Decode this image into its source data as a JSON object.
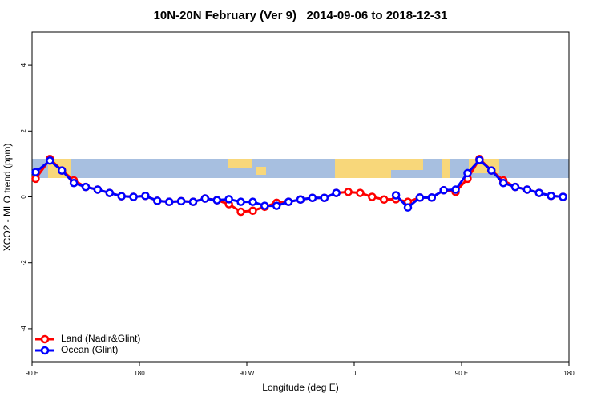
{
  "chart_data": {
    "type": "line",
    "title": "10N-20N February (Ver 9)   2014-09-06 to 2018-12-31",
    "xlabel": "Longitude (deg E)",
    "ylabel": "XCO2 - MLO trend (ppm)",
    "x": [
      93,
      105,
      115,
      125,
      135,
      145,
      155,
      165,
      175,
      185,
      195,
      205,
      215,
      225,
      235,
      245,
      255,
      265,
      275,
      285,
      295,
      305,
      315,
      325,
      335,
      345,
      355,
      365,
      375,
      385,
      395,
      405,
      415,
      425,
      435,
      445,
      455,
      465,
      475,
      485,
      495,
      505,
      515,
      525,
      535
    ],
    "series": [
      {
        "name": "Land (Nadir&Glint)",
        "color": "#ff0000",
        "values": [
          0.55,
          1.15,
          0.8,
          0.5,
          0.3,
          0.22,
          0.12,
          0.02,
          0,
          0.03,
          -0.12,
          -0.15,
          -0.13,
          -0.15,
          -0.05,
          -0.1,
          -0.22,
          -0.45,
          -0.42,
          -0.3,
          -0.18,
          -0.15,
          -0.08,
          -0.03,
          -0.03,
          0.12,
          0.15,
          0.12,
          0,
          -0.08,
          -0.07,
          -0.15,
          -0.02,
          -0.02,
          0.2,
          0.15,
          0.55,
          1.15,
          0.8,
          0.5,
          0.3,
          0.22,
          0.12,
          0.03,
          0
        ]
      },
      {
        "name": "Ocean (Glint)",
        "color": "#0000ff",
        "values": [
          0.75,
          1.1,
          0.8,
          0.42,
          0.3,
          0.22,
          0.12,
          0.02,
          0,
          0.03,
          -0.12,
          -0.15,
          -0.13,
          -0.15,
          -0.05,
          -0.1,
          -0.07,
          -0.15,
          -0.15,
          -0.27,
          -0.27,
          -0.15,
          -0.08,
          -0.03,
          -0.03,
          0.12,
          null,
          null,
          null,
          null,
          0.05,
          -0.32,
          -0.02,
          -0.02,
          0.2,
          0.22,
          0.72,
          1.12,
          0.8,
          0.42,
          0.3,
          0.22,
          0.12,
          0.03,
          0
        ]
      }
    ],
    "xlim": [
      90,
      540
    ],
    "xticks": [
      {
        "value": 90,
        "label": "90 E"
      },
      180,
      {
        "value": 270,
        "label": "90 W"
      },
      {
        "value": 360,
        "label": "0"
      },
      {
        "value": 450,
        "label": "90 E"
      },
      {
        "value": 540,
        "label": "180"
      }
    ],
    "ylim": [
      -5,
      5
    ],
    "yticks": [
      -4,
      -2,
      0,
      2,
      4
    ],
    "legend": "bottom left"
  }
}
